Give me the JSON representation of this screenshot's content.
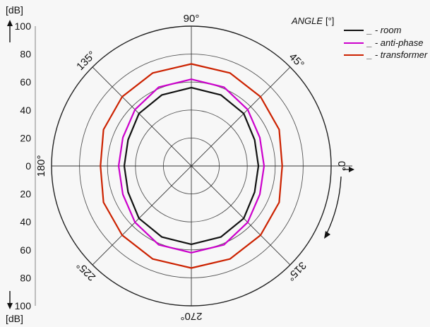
{
  "chart_data": {
    "type": "polar",
    "r_unit_label": "[dB]",
    "angle_title": "ANGLE",
    "angle_unit": "[°]",
    "radial_ticks": [
      0,
      20,
      40,
      60,
      80,
      100
    ],
    "rlim": [
      0,
      100
    ],
    "angle_labels": [
      {
        "angle": 90,
        "text": "90°"
      },
      {
        "angle": 45,
        "text": "45°"
      },
      {
        "angle": 0,
        "text": "0°"
      },
      {
        "angle": 315,
        "text": "315°"
      },
      {
        "angle": 270,
        "text": "270°"
      },
      {
        "angle": 225,
        "text": "225°"
      },
      {
        "angle": 180,
        "text": "180°"
      },
      {
        "angle": 135,
        "text": "135°"
      }
    ],
    "grid": true,
    "legend_position": "top-right",
    "series": [
      {
        "name": "_ - room",
        "color": "#111111",
        "points": [
          {
            "angle": 0,
            "r": 48
          },
          {
            "angle": 22.5,
            "r": 49
          },
          {
            "angle": 45,
            "r": 53
          },
          {
            "angle": 67.5,
            "r": 55
          },
          {
            "angle": 90,
            "r": 56
          },
          {
            "angle": 112.5,
            "r": 55
          },
          {
            "angle": 135,
            "r": 53
          },
          {
            "angle": 157.5,
            "r": 49
          },
          {
            "angle": 180,
            "r": 48
          },
          {
            "angle": 202.5,
            "r": 49
          },
          {
            "angle": 225,
            "r": 53
          },
          {
            "angle": 247.5,
            "r": 55
          },
          {
            "angle": 270,
            "r": 56
          },
          {
            "angle": 292.5,
            "r": 55
          },
          {
            "angle": 315,
            "r": 53
          },
          {
            "angle": 337.5,
            "r": 49
          }
        ]
      },
      {
        "name": "_ - anti-phase",
        "color": "#cc00cc",
        "points": [
          {
            "angle": 0,
            "r": 52
          },
          {
            "angle": 22.5,
            "r": 53
          },
          {
            "angle": 45,
            "r": 57
          },
          {
            "angle": 67.5,
            "r": 61
          },
          {
            "angle": 90,
            "r": 62
          },
          {
            "angle": 112.5,
            "r": 61
          },
          {
            "angle": 135,
            "r": 57
          },
          {
            "angle": 157.5,
            "r": 53
          },
          {
            "angle": 180,
            "r": 52
          },
          {
            "angle": 202.5,
            "r": 53
          },
          {
            "angle": 225,
            "r": 57
          },
          {
            "angle": 247.5,
            "r": 61
          },
          {
            "angle": 270,
            "r": 62
          },
          {
            "angle": 292.5,
            "r": 61
          },
          {
            "angle": 315,
            "r": 57
          },
          {
            "angle": 337.5,
            "r": 53
          }
        ]
      },
      {
        "name": "_ - transformer",
        "color": "#cc2200",
        "points": [
          {
            "angle": 0,
            "r": 65
          },
          {
            "angle": 22.5,
            "r": 68
          },
          {
            "angle": 45,
            "r": 70
          },
          {
            "angle": 67.5,
            "r": 72
          },
          {
            "angle": 90,
            "r": 73
          },
          {
            "angle": 112.5,
            "r": 72
          },
          {
            "angle": 135,
            "r": 70
          },
          {
            "angle": 157.5,
            "r": 68
          },
          {
            "angle": 180,
            "r": 65
          },
          {
            "angle": 202.5,
            "r": 68
          },
          {
            "angle": 225,
            "r": 70
          },
          {
            "angle": 247.5,
            "r": 72
          },
          {
            "angle": 270,
            "r": 73
          },
          {
            "angle": 292.5,
            "r": 72
          },
          {
            "angle": 315,
            "r": 70
          },
          {
            "angle": 337.5,
            "r": 68
          }
        ]
      }
    ]
  }
}
